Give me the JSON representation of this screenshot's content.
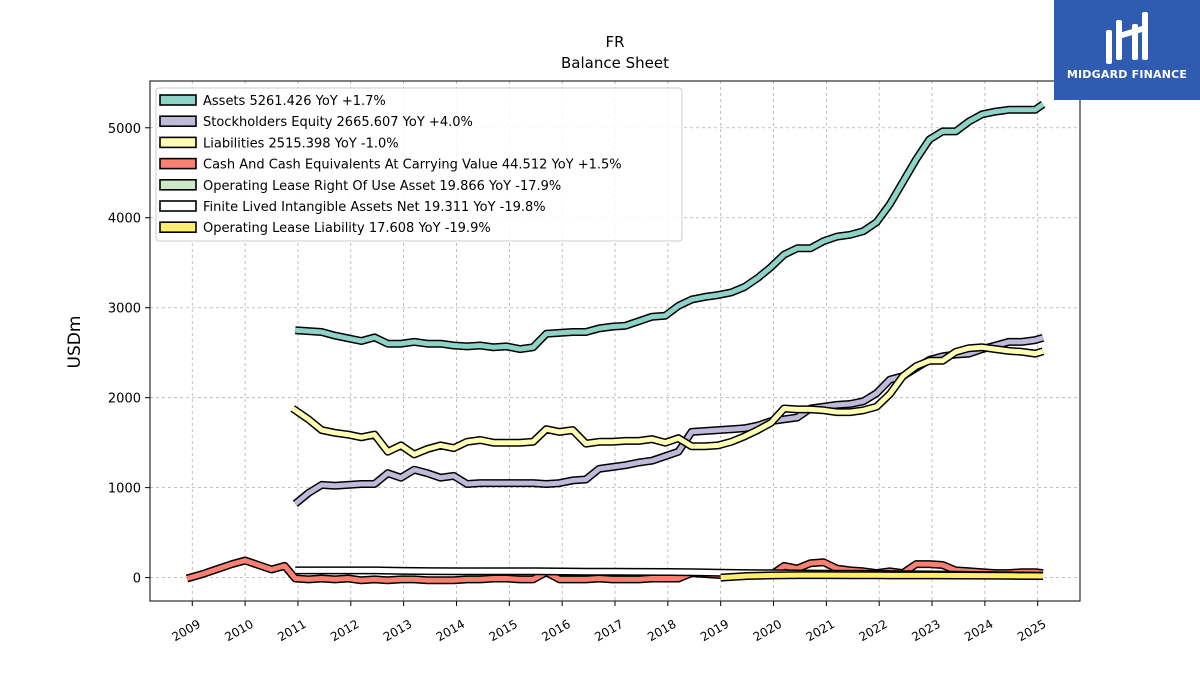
{
  "chart_data": {
    "type": "line",
    "title": "FR",
    "subtitle": "Balance  Sheet",
    "ylabel": "USDm",
    "xlabel": "",
    "xlim": [
      2008.2,
      2025.8
    ],
    "ylim": [
      -260,
      5520
    ],
    "yticks": [
      0,
      1000,
      2000,
      3000,
      4000,
      5000
    ],
    "xticks": [
      "2009",
      "2010",
      "2011",
      "2012",
      "2013",
      "2014",
      "2015",
      "2016",
      "2017",
      "2018",
      "2019",
      "2020",
      "2021",
      "2022",
      "2023",
      "2024",
      "2025"
    ],
    "grid": true,
    "legend_position": "top-left",
    "series": [
      {
        "name": "Assets  5261.426 YoY +1.7%",
        "color": "#8dd3c7",
        "x": [
          2010.95,
          2011.2,
          2011.45,
          2011.7,
          2011.95,
          2012.2,
          2012.45,
          2012.7,
          2012.95,
          2013.2,
          2013.45,
          2013.7,
          2013.95,
          2014.2,
          2014.45,
          2014.7,
          2014.95,
          2015.2,
          2015.45,
          2015.7,
          2015.95,
          2016.2,
          2016.45,
          2016.7,
          2016.95,
          2017.2,
          2017.45,
          2017.7,
          2017.95,
          2018.2,
          2018.45,
          2018.7,
          2018.95,
          2019.2,
          2019.45,
          2019.7,
          2019.95,
          2020.2,
          2020.45,
          2020.7,
          2020.95,
          2021.2,
          2021.45,
          2021.7,
          2021.95,
          2022.2,
          2022.45,
          2022.7,
          2022.95,
          2023.2,
          2023.45,
          2023.7,
          2023.95,
          2024.2,
          2024.45,
          2024.7,
          2024.95,
          2025.1
        ],
        "y": [
          2750,
          2740,
          2730,
          2690,
          2660,
          2630,
          2670,
          2600,
          2600,
          2620,
          2600,
          2600,
          2580,
          2570,
          2580,
          2560,
          2570,
          2540,
          2560,
          2710,
          2720,
          2730,
          2730,
          2770,
          2790,
          2800,
          2850,
          2900,
          2910,
          3020,
          3090,
          3120,
          3140,
          3170,
          3230,
          3330,
          3450,
          3590,
          3660,
          3660,
          3740,
          3790,
          3810,
          3850,
          3950,
          4150,
          4400,
          4650,
          4870,
          4960,
          4960,
          5070,
          5150,
          5180,
          5200,
          5200,
          5200,
          5261
        ]
      },
      {
        "name": "Stockholders Equity  2665.607 YoY +4.0%",
        "color": "#bebada",
        "x": [
          2010.95,
          2011.2,
          2011.45,
          2011.7,
          2011.95,
          2012.2,
          2012.45,
          2012.7,
          2012.95,
          2013.2,
          2013.45,
          2013.7,
          2013.95,
          2014.2,
          2014.45,
          2014.7,
          2014.95,
          2015.2,
          2015.45,
          2015.7,
          2015.95,
          2016.2,
          2016.45,
          2016.7,
          2016.95,
          2017.2,
          2017.45,
          2017.7,
          2017.95,
          2018.2,
          2018.45,
          2018.7,
          2018.95,
          2019.2,
          2019.45,
          2019.7,
          2019.95,
          2020.2,
          2020.45,
          2020.7,
          2020.95,
          2021.2,
          2021.45,
          2021.7,
          2021.95,
          2022.2,
          2022.45,
          2022.7,
          2022.95,
          2023.2,
          2023.45,
          2023.7,
          2023.95,
          2024.2,
          2024.45,
          2024.7,
          2024.95,
          2025.1
        ],
        "y": [
          820,
          940,
          1030,
          1020,
          1030,
          1040,
          1040,
          1160,
          1110,
          1200,
          1160,
          1110,
          1130,
          1040,
          1050,
          1050,
          1050,
          1050,
          1050,
          1040,
          1050,
          1080,
          1090,
          1210,
          1230,
          1250,
          1280,
          1300,
          1350,
          1400,
          1620,
          1630,
          1640,
          1650,
          1660,
          1690,
          1740,
          1760,
          1780,
          1880,
          1900,
          1920,
          1930,
          1960,
          2050,
          2200,
          2240,
          2330,
          2420,
          2460,
          2480,
          2490,
          2540,
          2580,
          2620,
          2620,
          2640,
          2666
        ]
      },
      {
        "name": "Liabilities  2515.398 YoY -1.0%",
        "color": "#ffffb3",
        "x": [
          2010.9,
          2011.2,
          2011.45,
          2011.7,
          2011.95,
          2012.2,
          2012.45,
          2012.7,
          2012.95,
          2013.2,
          2013.45,
          2013.7,
          2013.95,
          2014.2,
          2014.45,
          2014.7,
          2014.95,
          2015.2,
          2015.45,
          2015.7,
          2015.95,
          2016.2,
          2016.45,
          2016.7,
          2016.95,
          2017.2,
          2017.45,
          2017.7,
          2017.95,
          2018.2,
          2018.45,
          2018.7,
          2018.95,
          2019.2,
          2019.45,
          2019.7,
          2019.95,
          2020.2,
          2020.45,
          2020.7,
          2020.95,
          2021.2,
          2021.45,
          2021.7,
          2021.95,
          2022.2,
          2022.45,
          2022.7,
          2022.95,
          2023.2,
          2023.45,
          2023.7,
          2023.95,
          2024.2,
          2024.45,
          2024.7,
          2024.95,
          2025.1
        ],
        "y": [
          1880,
          1760,
          1640,
          1610,
          1590,
          1560,
          1590,
          1400,
          1470,
          1370,
          1430,
          1470,
          1440,
          1510,
          1530,
          1500,
          1500,
          1500,
          1510,
          1650,
          1620,
          1640,
          1490,
          1510,
          1510,
          1520,
          1520,
          1540,
          1500,
          1550,
          1460,
          1460,
          1470,
          1510,
          1570,
          1640,
          1720,
          1880,
          1870,
          1870,
          1860,
          1840,
          1840,
          1860,
          1900,
          2040,
          2240,
          2350,
          2410,
          2410,
          2510,
          2550,
          2560,
          2540,
          2520,
          2510,
          2490,
          2515
        ]
      },
      {
        "name": "Cash And Cash Equivalents At Carrying Value  44.512 YoY +1.5%",
        "color": "#fb8072",
        "x": [
          2008.9,
          2009.2,
          2009.5,
          2009.75,
          2010.0,
          2010.25,
          2010.5,
          2010.75,
          2010.95,
          2011.2,
          2011.45,
          2011.7,
          2011.95,
          2012.2,
          2012.45,
          2012.7,
          2012.95,
          2013.2,
          2013.45,
          2013.7,
          2013.95,
          2014.2,
          2014.45,
          2014.7,
          2014.95,
          2015.2,
          2015.45,
          2015.7,
          2015.95,
          2016.2,
          2016.45,
          2016.7,
          2016.95,
          2017.2,
          2017.45,
          2017.7,
          2017.95,
          2018.2,
          2018.45,
          2018.7,
          2018.95,
          2019.2,
          2019.45,
          2019.7,
          2019.95,
          2020.2,
          2020.45,
          2020.7,
          2020.95,
          2021.2,
          2021.45,
          2021.7,
          2021.95,
          2022.2,
          2022.45,
          2022.7,
          2022.95,
          2023.2,
          2023.45,
          2023.7,
          2023.95,
          2024.2,
          2024.45,
          2024.7,
          2024.95,
          2025.1
        ],
        "y": [
          -10,
          40,
          100,
          150,
          190,
          140,
          90,
          130,
          -10,
          -20,
          -10,
          -20,
          -10,
          -30,
          -20,
          -30,
          -20,
          -20,
          -30,
          -30,
          -30,
          -20,
          -20,
          -10,
          -10,
          -20,
          -20,
          60,
          -20,
          -20,
          -20,
          -10,
          -20,
          -20,
          -20,
          -10,
          -10,
          -10,
          50,
          40,
          30,
          20,
          20,
          40,
          30,
          130,
          100,
          160,
          170,
          100,
          80,
          70,
          50,
          70,
          50,
          150,
          150,
          140,
          80,
          70,
          60,
          50,
          50,
          60,
          60,
          50
        ]
      },
      {
        "name": "Operating Lease Right Of Use Asset  19.866 YoY -17.9%",
        "color": "#ccebc5",
        "x": [
          2019.0,
          2019.5,
          2020.0,
          2020.5,
          2021.0,
          2021.5,
          2022.0,
          2022.5,
          2023.0,
          2023.5,
          2024.0,
          2024.5,
          2025.1
        ],
        "y": [
          30,
          32,
          33,
          34,
          33,
          32,
          31,
          30,
          30,
          28,
          25,
          22,
          20
        ]
      },
      {
        "name": "Finite Lived Intangible Assets Net  19.311 YoY -19.8%",
        "color": "#ffffff",
        "x": [
          2010.95,
          2011.5,
          2012.0,
          2012.5,
          2013.0,
          2013.5,
          2014.0,
          2014.5,
          2015.0,
          2015.5,
          2016.0,
          2016.5,
          2017.0,
          2017.5,
          2018.0,
          2018.5,
          2019.0,
          2019.5,
          2020.0,
          2020.5,
          2021.0,
          2021.5,
          2022.0,
          2022.5,
          2023.0,
          2023.5,
          2024.0,
          2024.5,
          2025.1
        ],
        "y": [
          80,
          80,
          80,
          80,
          75,
          72,
          70,
          70,
          70,
          70,
          68,
          66,
          65,
          63,
          62,
          60,
          55,
          50,
          48,
          46,
          44,
          42,
          40,
          38,
          35,
          32,
          28,
          24,
          19
        ]
      },
      {
        "name": "Operating Lease Liability  17.608 YoY -19.9%",
        "color": "#ffed6f",
        "x": [
          2019.0,
          2019.5,
          2020.0,
          2020.5,
          2021.0,
          2021.5,
          2022.0,
          2022.5,
          2023.0,
          2023.5,
          2024.0,
          2024.5,
          2025.1
        ],
        "y": [
          0,
          18,
          25,
          28,
          28,
          27,
          26,
          25,
          24,
          23,
          22,
          20,
          18
        ]
      }
    ]
  },
  "logo": {
    "text": "MIDGARD FINANCE",
    "background": "#2f5bb0"
  }
}
